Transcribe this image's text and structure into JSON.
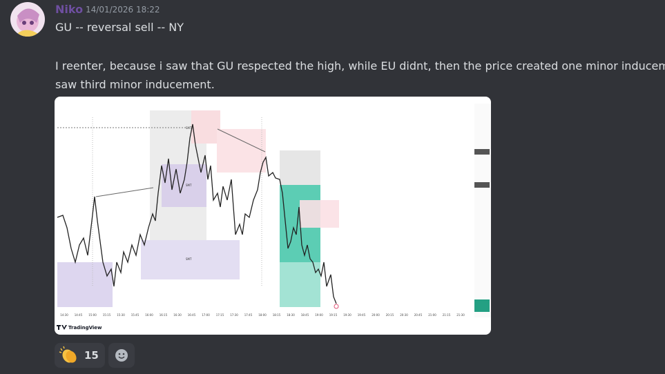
{
  "message": {
    "author": "Niko",
    "timestamp": "14/01/2026 18:22",
    "lines": [
      "GU -- reversal sell -- NY",
      "I reenter, because i saw that GU respected the high, while EU didnt, then the price created one minor inducement,",
      "saw third minor inducement."
    ]
  },
  "image": {
    "brand": "TradingView",
    "annotations": [
      "SMT",
      "SMT",
      "SMT"
    ],
    "x_axis_labels": [
      "14:30",
      "14:45",
      "15:00",
      "15:15",
      "15:30",
      "15:45",
      "16:00",
      "16:15",
      "16:30",
      "16:45",
      "17:00",
      "17:15",
      "17:30",
      "17:45",
      "18:00",
      "18:15",
      "18:30",
      "18:45",
      "19:00",
      "19:15",
      "19:30",
      "19:45",
      "20:00",
      "20:15",
      "20:30",
      "20:45",
      "21:00",
      "21:15",
      "21:30"
    ]
  },
  "reactions": [
    {
      "count": 15
    }
  ]
}
